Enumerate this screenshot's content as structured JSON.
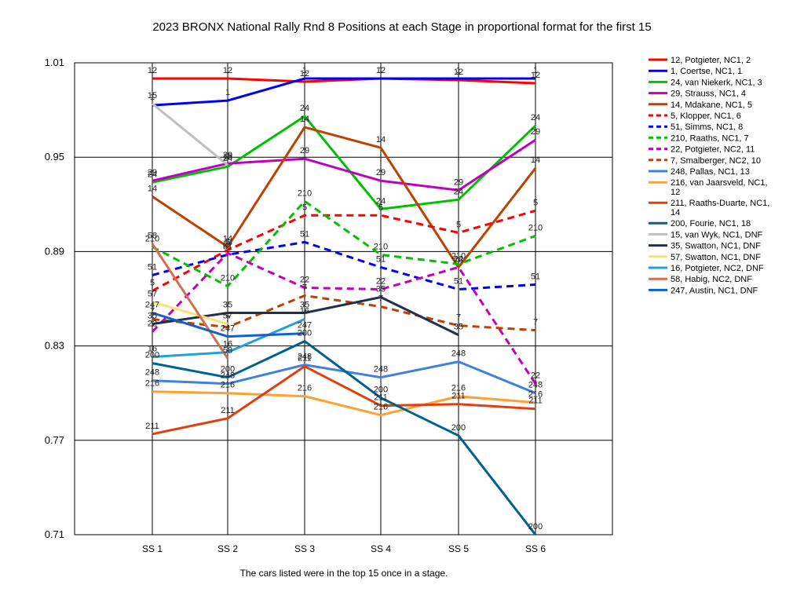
{
  "chart_data": {
    "type": "line",
    "title": "2023 BRONX National Rally Rnd 8  Positions at each Stage in proportional format for the first 15",
    "footer": "The cars listed were in the top 15 once in a stage.",
    "categories": [
      "SS 1",
      "SS 2",
      "SS 3",
      "SS 4",
      "SS 5",
      "SS 6"
    ],
    "yticks": [
      "1.01",
      "0.95",
      "0.89",
      "0.83",
      "0.77",
      "0.71"
    ],
    "ylim": [
      0.71,
      1.01
    ],
    "grid": true,
    "legend_position": "right",
    "series": [
      {
        "name": "12, Potgieter, NC1, 2",
        "label": "12",
        "color": "#ff0000",
        "dash": false,
        "values": [
          1.0,
          1.0,
          0.998,
          1.0,
          0.999,
          0.997
        ]
      },
      {
        "name": "1, Coertse, NC1, 1",
        "label": "1",
        "color": "#0000ff",
        "dash": false,
        "values": [
          0.983,
          0.986,
          1.0,
          1.0,
          1.0,
          1.0
        ]
      },
      {
        "name": "24, van Niekerk, NC1, 3",
        "label": "24",
        "color": "#00c000",
        "dash": false,
        "values": [
          0.934,
          0.944,
          0.976,
          0.917,
          0.923,
          0.97
        ]
      },
      {
        "name": "29, Strauss, NC1, 4",
        "label": "29",
        "color": "#c000c0",
        "dash": false,
        "values": [
          0.935,
          0.946,
          0.949,
          0.935,
          0.929,
          0.961
        ]
      },
      {
        "name": "14, Mdakane, NC1, 5",
        "label": "14",
        "color": "#c04000",
        "dash": false,
        "values": [
          0.925,
          0.893,
          0.969,
          0.956,
          0.88,
          0.943
        ]
      },
      {
        "name": "5, Klopper, NC1, 6",
        "label": "5",
        "color": "#ff0000",
        "dash": true,
        "values": [
          0.865,
          0.891,
          0.913,
          0.913,
          0.902,
          0.916
        ]
      },
      {
        "name": "51, Simms, NC1, 8",
        "label": "51",
        "color": "#0000ff",
        "dash": true,
        "values": [
          0.875,
          0.888,
          0.896,
          0.88,
          0.866,
          0.869
        ]
      },
      {
        "name": "210, Raaths, NC1, 7",
        "label": "210",
        "color": "#00c000",
        "dash": true,
        "values": [
          0.893,
          0.868,
          0.922,
          0.888,
          0.882,
          0.9
        ]
      },
      {
        "name": "22, Potgieter, NC2, 11",
        "label": "22",
        "color": "#c000c0",
        "dash": true,
        "values": [
          0.839,
          0.889,
          0.867,
          0.866,
          0.88,
          0.806
        ]
      },
      {
        "name": "7, Smalberger, NC2, 10",
        "label": "7",
        "color": "#c04000",
        "dash": true,
        "values": [
          0.847,
          0.842,
          0.862,
          0.855,
          0.843,
          0.84
        ]
      },
      {
        "name": "248, Pallas, NC1, 13",
        "label": "248",
        "color": "#4080e0",
        "dash": false,
        "values": [
          0.808,
          0.806,
          0.818,
          0.81,
          0.82,
          0.8
        ]
      },
      {
        "name": "216, van Jaarsveld, NC1, 12",
        "label": "216",
        "color": "#ffa030",
        "dash": false,
        "values": [
          0.801,
          0.8,
          0.798,
          0.786,
          0.798,
          0.794
        ]
      },
      {
        "name": "211, Raaths-Duarte, NC1, 14",
        "label": "211",
        "color": "#e04010",
        "dash": false,
        "values": [
          0.774,
          0.784,
          0.817,
          0.792,
          0.793,
          0.79
        ]
      },
      {
        "name": "200, Fourie, NC1, 18",
        "label": "200",
        "color": "#006090",
        "dash": false,
        "values": [
          0.819,
          0.81,
          0.833,
          0.797,
          0.773,
          0.708
        ]
      },
      {
        "name": "15, van Wyk, NC1,  DNF",
        "label": "15",
        "color": "#c0c0c0",
        "dash": false,
        "values": [
          0.984,
          0.945,
          null,
          null,
          null,
          null
        ]
      },
      {
        "name": "35, Swatton, NC1,  DNF",
        "label": "35",
        "color": "#203050",
        "dash": false,
        "values": [
          0.844,
          0.851,
          0.851,
          0.861,
          0.837,
          null
        ]
      },
      {
        "name": "57, Swatton, NC1,  DNF",
        "label": "57",
        "color": "#ffe070",
        "dash": false,
        "values": [
          0.858,
          0.844,
          null,
          null,
          null,
          null
        ]
      },
      {
        "name": "16, Potgieter, NC2,  DNF",
        "label": "16",
        "color": "#20a0e0",
        "dash": false,
        "values": [
          0.823,
          0.826,
          0.847,
          null,
          null,
          null
        ]
      },
      {
        "name": "58, Habig, NC2,  DNF",
        "label": "58",
        "color": "#d07050",
        "dash": false,
        "values": [
          0.895,
          0.822,
          null,
          null,
          null,
          null
        ]
      },
      {
        "name": "247, Austin, NC1,  DNF",
        "label": "247",
        "color": "#1060d0",
        "dash": false,
        "values": [
          0.851,
          0.836,
          0.838,
          null,
          null,
          null
        ]
      }
    ]
  }
}
